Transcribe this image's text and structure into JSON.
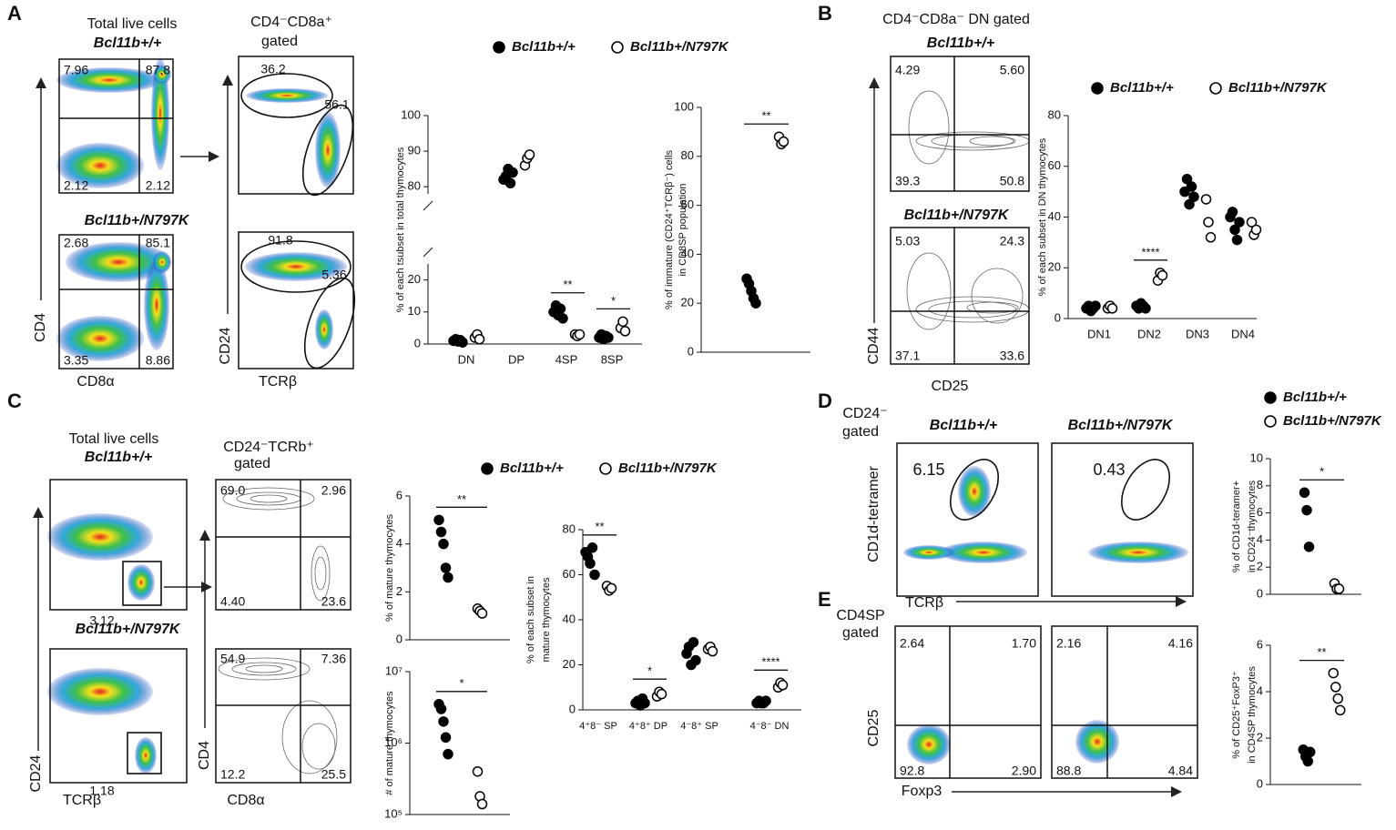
{
  "figure": {
    "panel_letters": [
      "A",
      "B",
      "C",
      "D",
      "E"
    ],
    "A": {
      "population": "Total live cells",
      "genotypes": [
        "Bcl11b+/+",
        "Bcl11b+/N797K"
      ],
      "gate": [
        "CD4⁻CD8a⁺",
        "gated"
      ],
      "axes": [
        "CD4",
        "CD8α",
        "CD24",
        "TCRβ"
      ]
    },
    "B": {
      "gate": "CD4⁻CD8a⁻ DN gated",
      "genotypes": [
        "Bcl11b+/+",
        "Bcl11b+/N797K"
      ],
      "axes": [
        "CD44",
        "CD25"
      ]
    },
    "C": {
      "population": "Total live cells",
      "genotypes": [
        "Bcl11b+/+",
        "Bcl11b+/N797K"
      ],
      "gate": [
        "CD24⁻TCRb⁺",
        "gated"
      ],
      "axes": [
        "CD24",
        "TCRβ",
        "CD4",
        "CD8α"
      ]
    },
    "D": {
      "gate": [
        "CD24⁻",
        "gated"
      ],
      "genotypes": [
        "Bcl11b+/+",
        "Bcl11b+/N797K"
      ],
      "axes": [
        "CD1d-tetramer",
        "TCRβ"
      ]
    },
    "E": {
      "gate": [
        "CD4SP",
        "gated"
      ],
      "axes": [
        "CD25",
        "Foxp3"
      ]
    }
  },
  "flow_plots": [
    {
      "labels": [
        "7.96",
        "87.8",
        "2.12",
        "2.12"
      ]
    },
    {
      "labels": [
        "2.68",
        "85.1",
        "3.35",
        "8.86"
      ]
    },
    {
      "labels": [
        "36.2",
        "56.1"
      ]
    },
    {
      "labels": [
        "91.8",
        "5.36"
      ]
    },
    {
      "labels": [
        "4.29",
        "5.60",
        "39.3",
        "50.8"
      ]
    },
    {
      "labels": [
        "5.03",
        "24.3",
        "37.1",
        "33.6"
      ]
    },
    {
      "labels": [
        "3.12"
      ]
    },
    {
      "labels": [
        "1.18"
      ]
    },
    {
      "labels": [
        "69.0",
        "2.96",
        "4.40",
        "23.6"
      ]
    },
    {
      "labels": [
        "54.9",
        "7.36",
        "12.2",
        "25.5"
      ]
    },
    {
      "labels": [
        "6.15"
      ]
    },
    {
      "labels": [
        "0.43"
      ]
    },
    {
      "labels": [
        "2.64",
        "1.70",
        "92.8",
        "2.90"
      ]
    },
    {
      "labels": [
        "2.16",
        "4.16",
        "88.8",
        "4.84"
      ]
    }
  ],
  "chart_data": [
    {
      "type": "strip",
      "ylabel": [
        "% of each tsubset in total thymocytes"
      ],
      "categories": [
        "DN",
        "DP",
        "4SP",
        "8SP"
      ],
      "series": [
        {
          "name": "Bcl11b+/+",
          "color": "#000000",
          "filled": true,
          "values": [
            [
              1,
              1.5,
              0.8,
              1.2,
              0.5
            ],
            [
              82,
              83,
              85,
              81,
              84
            ],
            [
              10,
              12,
              9,
              11,
              8
            ],
            [
              2,
              3,
              1.5,
              2.5,
              2
            ]
          ]
        },
        {
          "name": "Bcl11b+/N797K",
          "color": "#000000",
          "filled": false,
          "values": [
            [
              2,
              3,
              1.5
            ],
            [
              86,
              88,
              89
            ],
            [
              3,
              2.5,
              3
            ],
            [
              5,
              7,
              4
            ]
          ]
        }
      ],
      "ylim": [
        0,
        100
      ],
      "axis_break": [
        25,
        78
      ],
      "yticks": [
        0,
        10,
        20,
        80,
        90,
        100
      ],
      "significance": [
        null,
        null,
        "**",
        "*"
      ],
      "legend": true
    },
    {
      "type": "strip",
      "ylabel": [
        "% of immature (CD24⁺TCRβ⁻) cells",
        "in CD8SP population"
      ],
      "categories": [
        null
      ],
      "series": [
        {
          "name": "Bcl11b+/+",
          "color": "#000000",
          "filled": true,
          "values": [
            [
              30,
              28,
              25,
              22,
              20
            ]
          ]
        },
        {
          "name": "Bcl11b+/N797K",
          "color": "#000000",
          "filled": false,
          "values": [
            [
              88,
              85,
              86
            ]
          ]
        }
      ],
      "ylim": [
        0,
        100
      ],
      "yticks": [
        0,
        20,
        40,
        60,
        80,
        100
      ],
      "significance": [
        "**"
      ],
      "legend": false
    },
    {
      "type": "strip",
      "ylabel": [
        "% of each subset in DN thymocytes"
      ],
      "categories": [
        "DN1",
        "DN2",
        "DN3",
        "DN4"
      ],
      "series": [
        {
          "name": "Bcl11b+/+",
          "color": "#000000",
          "filled": true,
          "values": [
            [
              4,
              5,
              3,
              4,
              5
            ],
            [
              5,
              4,
              6,
              5,
              4
            ],
            [
              50,
              55,
              45,
              52,
              48
            ],
            [
              40,
              42,
              35,
              31,
              38
            ]
          ]
        },
        {
          "name": "Bcl11b+/N797K",
          "color": "#000000",
          "filled": false,
          "values": [
            [
              4,
              5,
              4
            ],
            [
              15,
              18,
              17
            ],
            [
              47,
              38,
              32
            ],
            [
              38,
              33,
              35
            ]
          ]
        }
      ],
      "ylim": [
        0,
        80
      ],
      "yticks": [
        0,
        20,
        40,
        60,
        80
      ],
      "significance": [
        null,
        "****",
        null,
        null
      ],
      "legend": true
    },
    {
      "type": "strip",
      "ylabel": [
        "% of mature thymocytes"
      ],
      "categories": [
        null
      ],
      "series": [
        {
          "name": "Bcl11b+/+",
          "color": "#000000",
          "filled": true,
          "values": [
            [
              5.0,
              4.5,
              4.0,
              3.0,
              2.6
            ]
          ]
        },
        {
          "name": "Bcl11b+/N797K",
          "color": "#000000",
          "filled": false,
          "values": [
            [
              1.3,
              1.2,
              1.1
            ]
          ]
        }
      ],
      "ylim": [
        0,
        6
      ],
      "yticks": [
        0,
        2,
        4,
        6
      ],
      "significance": [
        "**"
      ],
      "legend": false
    },
    {
      "type": "strip",
      "ylabel": [
        "# of mature thymocytes"
      ],
      "categories": [
        null
      ],
      "log": true,
      "series": [
        {
          "name": "Bcl11b+/+",
          "color": "#000000",
          "filled": true,
          "values": [
            [
              3500000,
              3000000,
              2000000,
              1200000,
              700000
            ]
          ]
        },
        {
          "name": "Bcl11b+/N797K",
          "color": "#000000",
          "filled": false,
          "values": [
            [
              400000,
              180000,
              140000
            ]
          ]
        }
      ],
      "ylim": [
        100000,
        10000000
      ],
      "yticks": [
        {
          "value": 100000,
          "label": "10⁵"
        },
        {
          "value": 1000000,
          "label": "10⁶"
        },
        {
          "value": 10000000,
          "label": "10⁷"
        }
      ],
      "significance": [
        "*"
      ],
      "legend": false
    },
    {
      "type": "strip",
      "ylabel": [
        "% of each subset in",
        "mature thymocytes"
      ],
      "categories": [
        "4⁺8⁻ SP",
        "4⁺8⁺ DP",
        "4⁻8⁺ SP",
        "4⁻8⁻ DN"
      ],
      "series": [
        {
          "name": "Bcl11b+/+",
          "color": "#000000",
          "filled": true,
          "values": [
            [
              70,
              68,
              65,
              72,
              60
            ],
            [
              3,
              4,
              2,
              5,
              3
            ],
            [
              25,
              28,
              20,
              30,
              22
            ],
            [
              3,
              4,
              3,
              3,
              4
            ]
          ]
        },
        {
          "name": "Bcl11b+/N797K",
          "color": "#000000",
          "filled": false,
          "values": [
            [
              55,
              53,
              54
            ],
            [
              6,
              8,
              7
            ],
            [
              27,
              28,
              26
            ],
            [
              10,
              12,
              11
            ]
          ]
        }
      ],
      "ylim": [
        0,
        80
      ],
      "yticks": [
        0,
        20,
        40,
        60,
        80
      ],
      "significance": [
        "**",
        "*",
        null,
        "****"
      ],
      "legend": true
    },
    {
      "type": "strip",
      "ylabel": [
        "% of CD1d-teramer+",
        "in CD24⁻thymocytes"
      ],
      "categories": [
        null
      ],
      "series": [
        {
          "name": "Bcl11b+/+",
          "color": "#000000",
          "filled": true,
          "values": [
            [
              7.5,
              6.2,
              3.5
            ]
          ]
        },
        {
          "name": "Bcl11b+/N797K",
          "color": "#000000",
          "filled": false,
          "values": [
            [
              0.8,
              0.4,
              0.4
            ]
          ]
        }
      ],
      "ylim": [
        0,
        10
      ],
      "yticks": [
        0,
        2,
        4,
        6,
        8,
        10
      ],
      "significance": [
        "*"
      ],
      "legend": true
    },
    {
      "type": "strip",
      "ylabel": [
        "% of CD25⁺FoxP3⁺",
        "in CD4SP thymocytes"
      ],
      "categories": [
        null
      ],
      "series": [
        {
          "name": "Bcl11b+/+",
          "color": "#000000",
          "filled": true,
          "values": [
            [
              1.5,
              1.2,
              1.0,
              1.4
            ]
          ]
        },
        {
          "name": "Bcl11b+/N797K",
          "color": "#000000",
          "filled": false,
          "values": [
            [
              4.8,
              4.2,
              3.7,
              3.2
            ]
          ]
        }
      ],
      "ylim": [
        0,
        6
      ],
      "yticks": [
        0,
        2,
        4,
        6
      ],
      "significance": [
        "**"
      ],
      "legend": false
    }
  ]
}
